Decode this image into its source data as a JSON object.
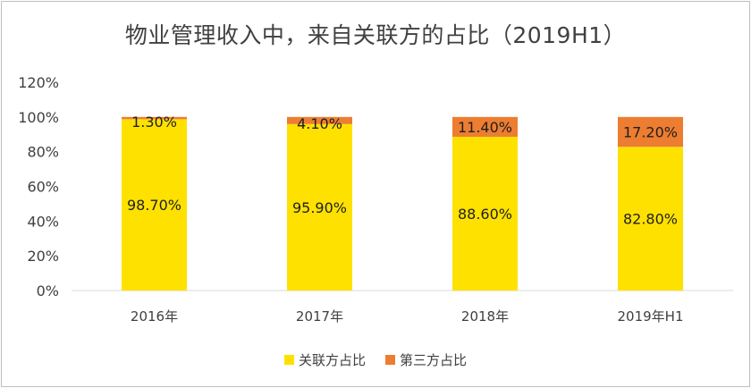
{
  "chart_data": {
    "type": "bar",
    "stacked": true,
    "title": "物业管理收入中，来自关联方的占比（2019H1）",
    "categories": [
      "2016年",
      "2017年",
      "2018年",
      "2019年H1"
    ],
    "series": [
      {
        "name": "关联方占比",
        "color": "#FFE100",
        "values": [
          98.7,
          95.9,
          88.6,
          82.8
        ],
        "labels": [
          "98.70%",
          "95.90%",
          "88.60%",
          "82.80%"
        ]
      },
      {
        "name": "第三方占比",
        "color": "#ED7D31",
        "values": [
          1.3,
          4.1,
          11.4,
          17.2
        ],
        "labels": [
          "1.30%",
          "4.10%",
          "11.40%",
          "17.20%"
        ]
      }
    ],
    "ylim": [
      0,
      120
    ],
    "yticks": [
      "0%",
      "20%",
      "40%",
      "60%",
      "80%",
      "100%",
      "120%"
    ],
    "grid": false,
    "legend": "bottom"
  }
}
